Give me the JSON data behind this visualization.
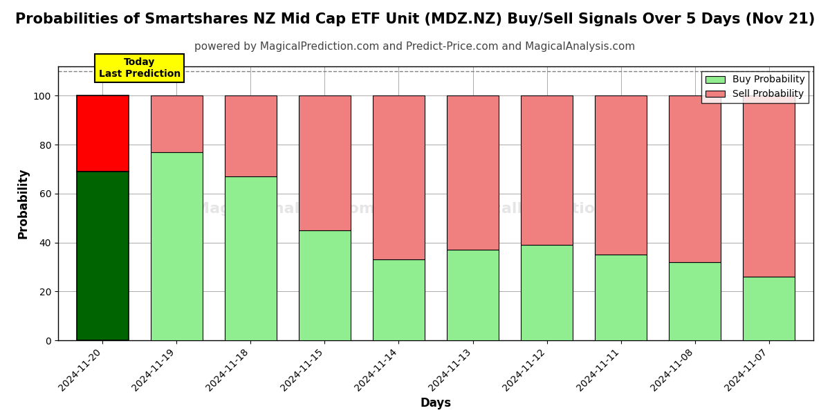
{
  "title": "Probabilities of Smartshares NZ Mid Cap ETF Unit (MDZ.NZ) Buy/Sell Signals Over 5 Days (Nov 21)",
  "subtitle": "powered by MagicalPrediction.com and Predict-Price.com and MagicalAnalysis.com",
  "xlabel": "Days",
  "ylabel": "Probability",
  "dates": [
    "2024-11-20",
    "2024-11-19",
    "2024-11-18",
    "2024-11-15",
    "2024-11-14",
    "2024-11-13",
    "2024-11-12",
    "2024-11-11",
    "2024-11-08",
    "2024-11-07"
  ],
  "buy_values": [
    69,
    77,
    67,
    45,
    33,
    37,
    39,
    35,
    32,
    26
  ],
  "sell_values": [
    31,
    23,
    33,
    55,
    67,
    63,
    61,
    65,
    68,
    74
  ],
  "buy_color_normal": "#90EE90",
  "sell_color_normal": "#F08080",
  "buy_color_today_dark": "#006400",
  "sell_color_today_red": "#FF0000",
  "today_annotation": "Today\nLast Prediction",
  "legend_buy": "Buy Probability",
  "legend_sell": "Sell Probability",
  "ylim": [
    0,
    112
  ],
  "dashed_line_y": 110,
  "background_color": "#ffffff",
  "grid_color": "#aaaaaa",
  "title_fontsize": 15,
  "subtitle_fontsize": 11,
  "axis_label_fontsize": 12,
  "tick_fontsize": 10
}
